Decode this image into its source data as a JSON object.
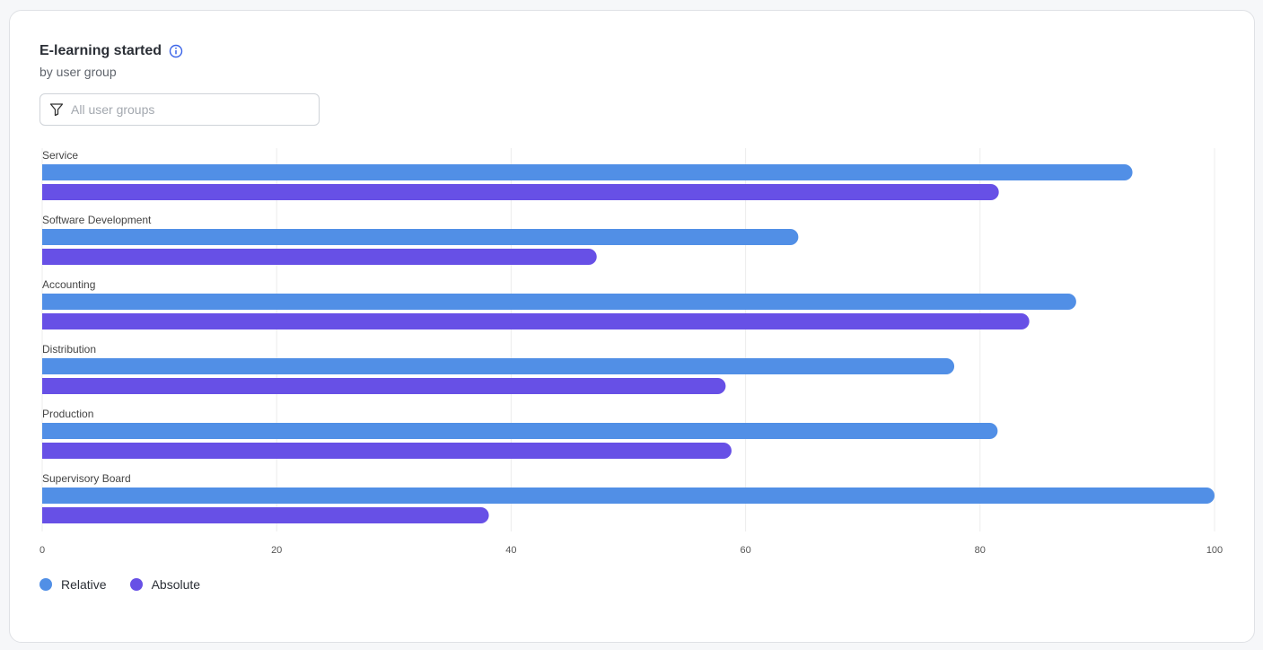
{
  "header": {
    "title": "E-learning started",
    "subtitle": "by user group",
    "info_icon": "info-icon"
  },
  "filter": {
    "placeholder": "All user groups",
    "icon": "filter-icon"
  },
  "chart_data": {
    "type": "bar",
    "orientation": "horizontal",
    "categories": [
      "Service",
      "Software Development",
      "Accounting",
      "Distribution",
      "Production",
      "Supervisory Board"
    ],
    "series": [
      {
        "name": "Relative",
        "color": "#518fe6",
        "values": [
          93,
          64.5,
          88.2,
          77.8,
          81.5,
          100
        ]
      },
      {
        "name": "Absolute",
        "color": "#6750e6",
        "values": [
          81.6,
          47.3,
          84.2,
          58.3,
          58.8,
          38.1
        ]
      }
    ],
    "xlim": [
      0,
      100
    ],
    "xticks": [
      0,
      20,
      40,
      60,
      80,
      100
    ],
    "grid": true,
    "legend_position": "bottom-left"
  }
}
